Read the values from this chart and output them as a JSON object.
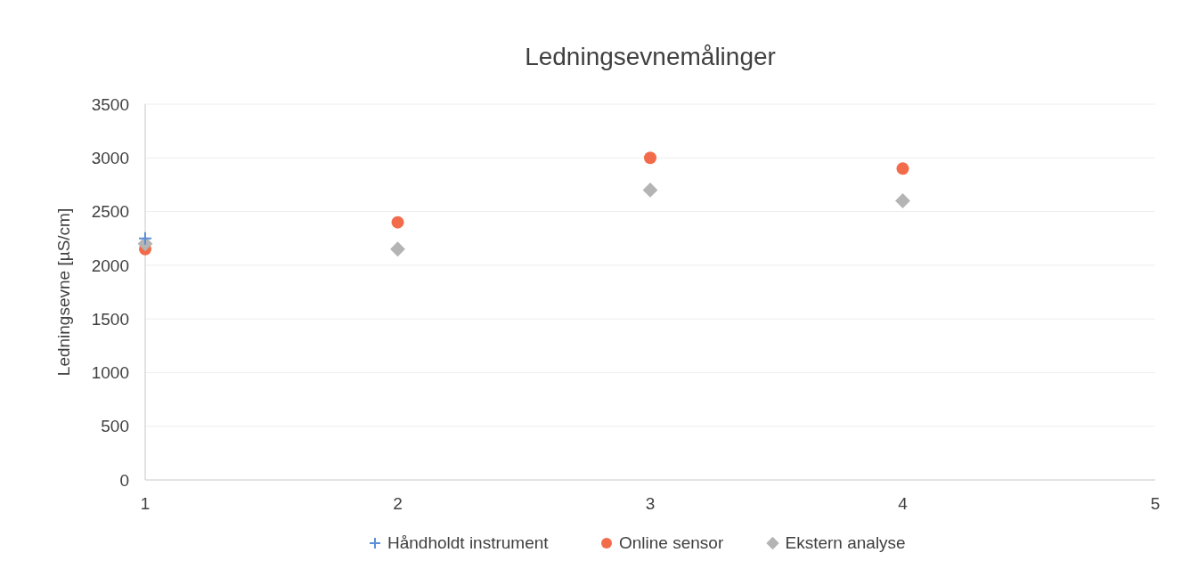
{
  "chart_data": {
    "type": "scatter",
    "title": "Ledningsevnemålinger",
    "ylabel": "Ledningsevne [µS/cm]",
    "x": [
      1,
      2,
      3,
      4
    ],
    "xlim": [
      1,
      5
    ],
    "xticks": [
      1,
      2,
      3,
      4,
      5
    ],
    "ylim": [
      0,
      3500
    ],
    "yticks": [
      0,
      500,
      1000,
      1500,
      2000,
      2500,
      3000,
      3500
    ],
    "grid": "y",
    "legend": "bottom",
    "series": [
      {
        "name": "Håndholdt instrument",
        "color": "#5b8fd9",
        "marker": "cross",
        "values": [
          2250,
          null,
          null,
          null
        ]
      },
      {
        "name": "Online sensor",
        "color": "#f26b4a",
        "marker": "circle",
        "values": [
          2150,
          2400,
          3000,
          2900
        ]
      },
      {
        "name": "Ekstern analyse",
        "color": "#b4b4b4",
        "marker": "diamond",
        "values": [
          2200,
          2150,
          2700,
          2600
        ]
      }
    ]
  }
}
